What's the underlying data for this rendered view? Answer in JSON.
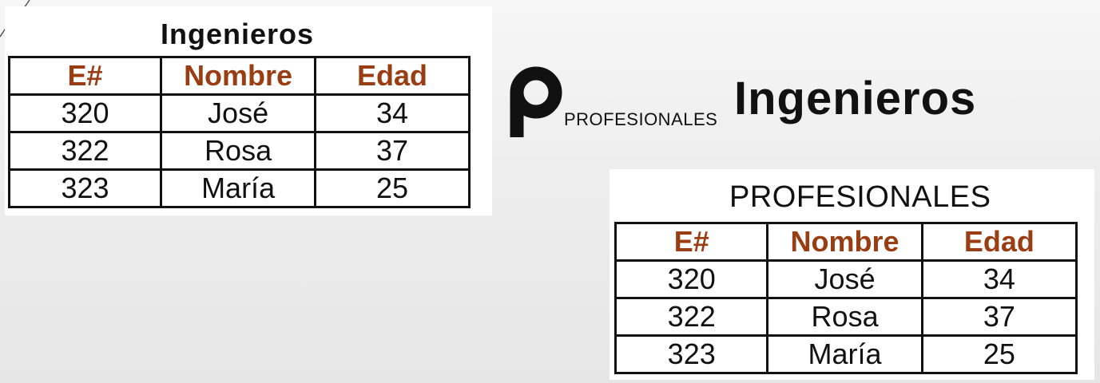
{
  "left_table": {
    "title": "Ingenieros",
    "headers": [
      "E#",
      "Nombre",
      "Edad"
    ],
    "rows": [
      [
        "320",
        "José",
        "34"
      ],
      [
        "322",
        "Rosa",
        "37"
      ],
      [
        "323",
        "María",
        "25"
      ]
    ]
  },
  "formula": {
    "operator_symbol": "ρ",
    "subscript": "PROFESIONALES",
    "relation": "Ingenieros"
  },
  "right_table": {
    "title": "PROFESIONALES",
    "headers": [
      "E#",
      "Nombre",
      "Edad"
    ],
    "rows": [
      [
        "320",
        "José",
        "34"
      ],
      [
        "322",
        "Rosa",
        "37"
      ],
      [
        "323",
        "María",
        "25"
      ]
    ]
  },
  "colors": {
    "header_text": "#9a3d12",
    "border": "#111111",
    "background": "#ececec"
  }
}
